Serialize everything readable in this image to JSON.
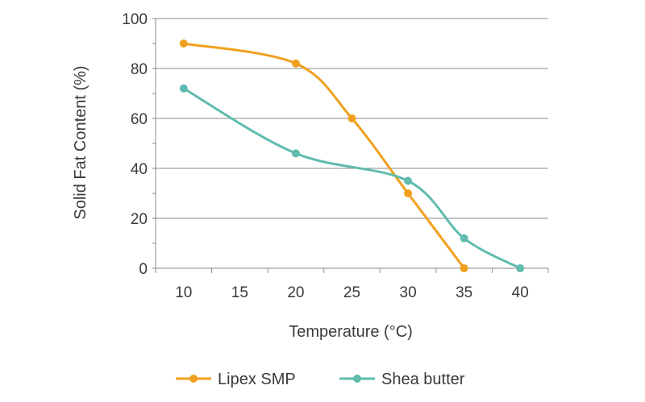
{
  "chart_data": {
    "type": "line",
    "xlabel": "Temperature (°C)",
    "ylabel": "Solid Fat Content (%)",
    "xlim": [
      7.5,
      42.5
    ],
    "ylim": [
      0,
      100
    ],
    "x_ticks": [
      10,
      15,
      20,
      25,
      30,
      35,
      40
    ],
    "y_ticks": [
      0,
      20,
      40,
      60,
      80,
      100
    ],
    "grid": "horizontal",
    "legend_position": "bottom",
    "series": [
      {
        "name": "Lipex SMP",
        "color": "#f0a01e",
        "points": [
          {
            "x": 10,
            "y": 90
          },
          {
            "x": 20,
            "y": 82
          },
          {
            "x": 25,
            "y": 60
          },
          {
            "x": 30,
            "y": 30
          },
          {
            "x": 35,
            "y": 0
          }
        ]
      },
      {
        "name": "Shea butter",
        "color": "#5fbcae",
        "points": [
          {
            "x": 10,
            "y": 72
          },
          {
            "x": 20,
            "y": 46
          },
          {
            "x": 30,
            "y": 35
          },
          {
            "x": 35,
            "y": 12
          },
          {
            "x": 40,
            "y": 0
          }
        ]
      }
    ]
  }
}
